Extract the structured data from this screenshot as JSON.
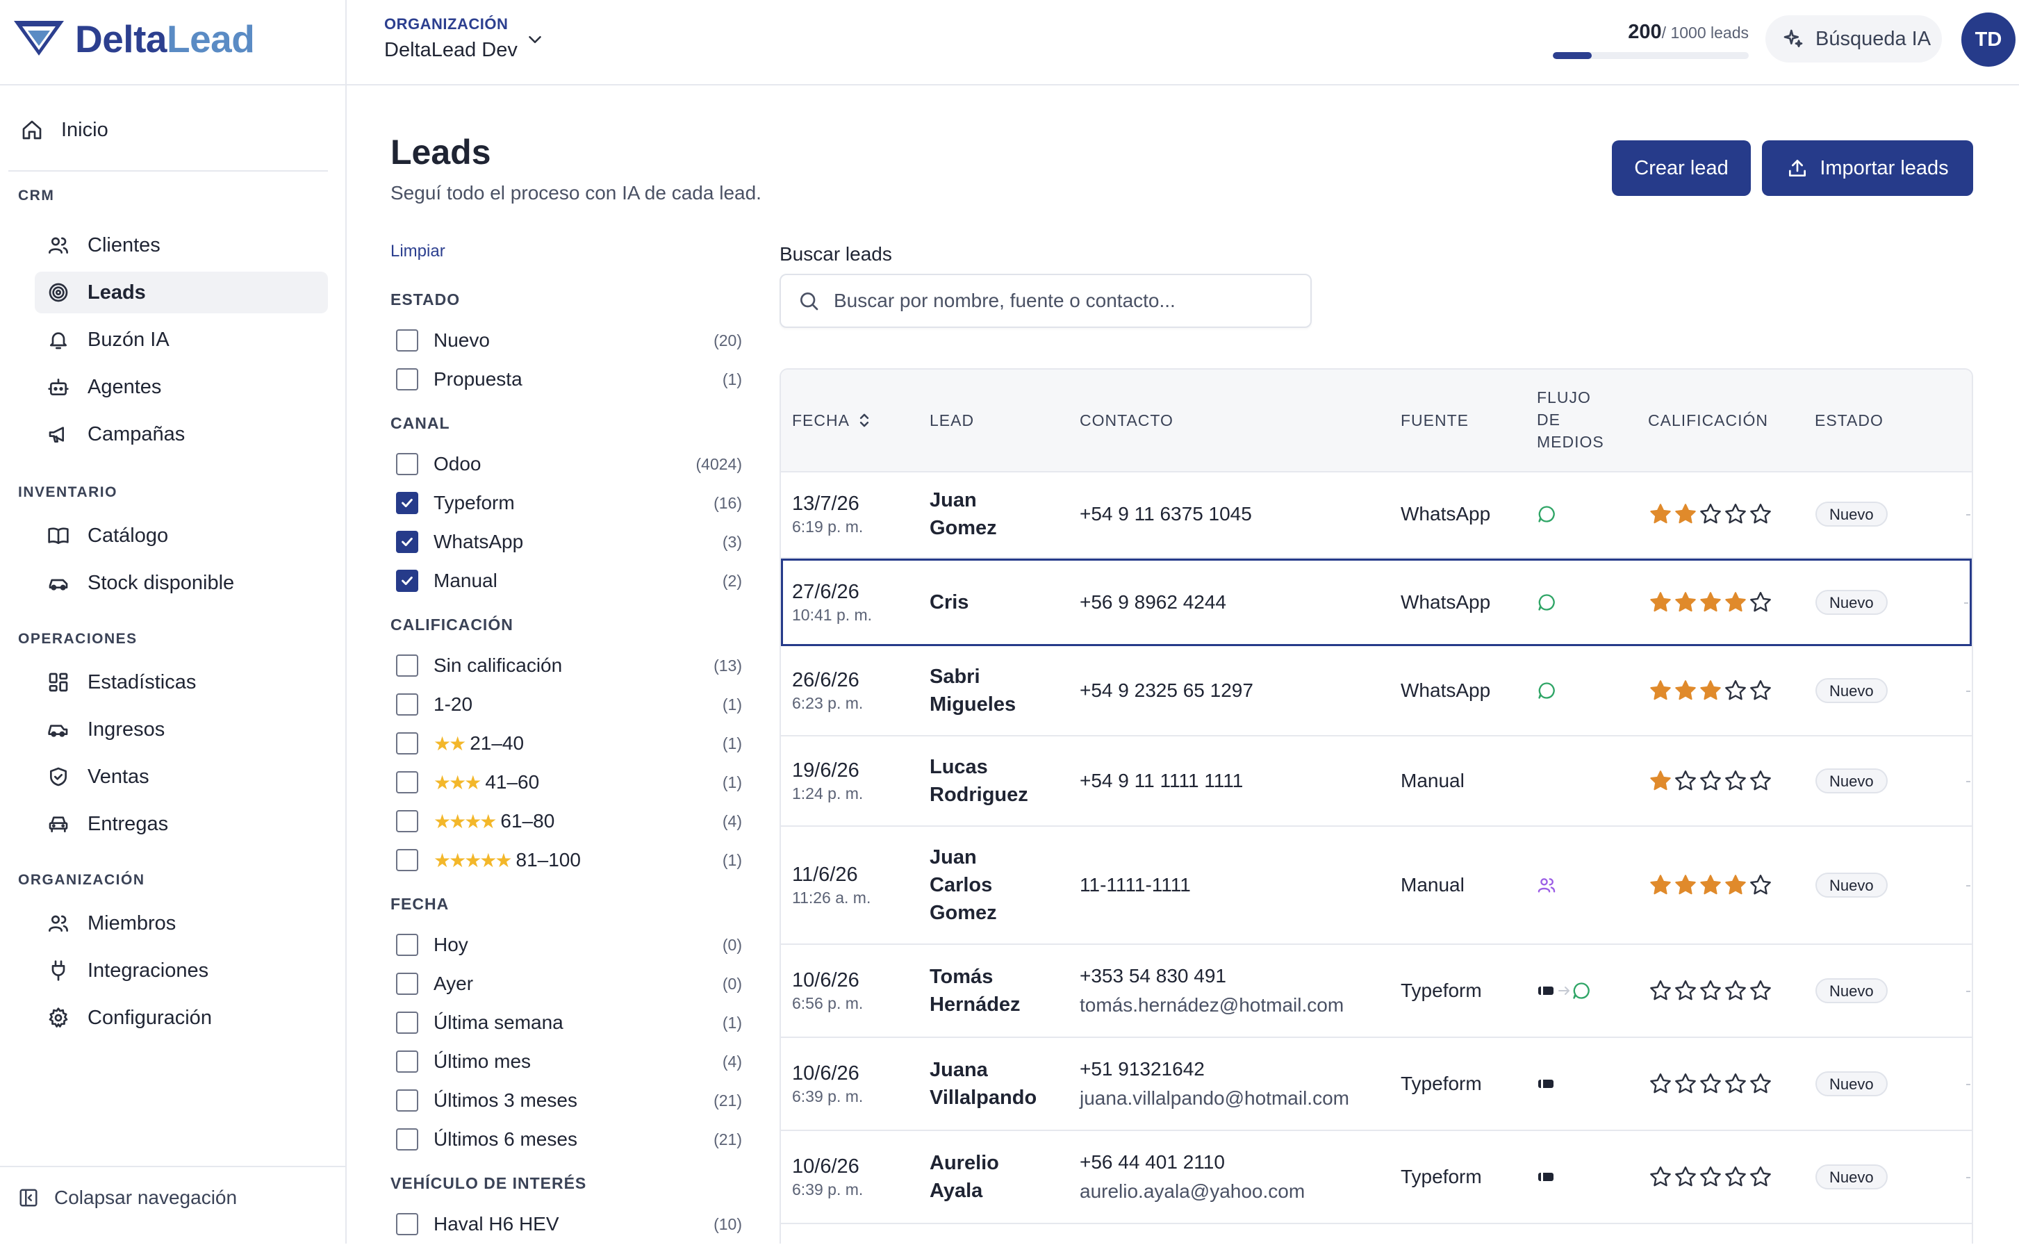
{
  "brand": {
    "name_part1": "Delta",
    "name_part2": "Lead"
  },
  "sidebar": {
    "home": {
      "label": "Inicio",
      "icon": "home-icon"
    },
    "sections": [
      {
        "title": "CRM",
        "items": [
          {
            "label": "Clientes",
            "icon": "users-icon"
          },
          {
            "label": "Leads",
            "icon": "target-icon",
            "active": true
          },
          {
            "label": "Buzón IA",
            "icon": "bell-icon"
          },
          {
            "label": "Agentes",
            "icon": "bot-icon"
          },
          {
            "label": "Campañas",
            "icon": "megaphone-icon"
          }
        ]
      },
      {
        "title": "INVENTARIO",
        "items": [
          {
            "label": "Catálogo",
            "icon": "book-icon"
          },
          {
            "label": "Stock disponible",
            "icon": "car-icon"
          }
        ]
      },
      {
        "title": "OPERACIONES",
        "items": [
          {
            "label": "Estadísticas",
            "icon": "dashboard-icon"
          },
          {
            "label": "Ingresos",
            "icon": "car-in-icon"
          },
          {
            "label": "Ventas",
            "icon": "shield-icon"
          },
          {
            "label": "Entregas",
            "icon": "car-front-icon"
          }
        ]
      },
      {
        "title": "ORGANIZACIÓN",
        "items": [
          {
            "label": "Miembros",
            "icon": "users-icon"
          },
          {
            "label": "Integraciones",
            "icon": "plug-icon"
          },
          {
            "label": "Configuración",
            "icon": "gear-icon"
          }
        ]
      }
    ],
    "collapse_label": "Colapsar navegación"
  },
  "topbar": {
    "org_label": "ORGANIZACIÓN",
    "org_name": "DeltaLead Dev",
    "usage_used": "200",
    "usage_total": "/ 1000 leads",
    "usage_fraction": 0.2,
    "ai_search_label": "Búsqueda IA",
    "avatar_initials": "TD"
  },
  "page": {
    "title": "Leads",
    "subtitle": "Seguí todo el proceso con IA de cada lead.",
    "create_button": "Crear lead",
    "import_button": "Importar leads"
  },
  "filters": {
    "clear_label": "Limpiar",
    "groups": [
      {
        "title": "ESTADO",
        "options": [
          {
            "label": "Nuevo",
            "count": "(20)",
            "checked": false
          },
          {
            "label": "Propuesta",
            "count": "(1)",
            "checked": false
          }
        ]
      },
      {
        "title": "CANAL",
        "options": [
          {
            "label": "Odoo",
            "count": "(4024)",
            "checked": false
          },
          {
            "label": "Typeform",
            "count": "(16)",
            "checked": true
          },
          {
            "label": "WhatsApp",
            "count": "(3)",
            "checked": true
          },
          {
            "label": "Manual",
            "count": "(2)",
            "checked": true
          }
        ]
      },
      {
        "title": "CALIFICACIÓN",
        "options": [
          {
            "label": "Sin calificación",
            "count": "(13)",
            "checked": false,
            "stars": 0
          },
          {
            "label": "1-20",
            "count": "(1)",
            "checked": false,
            "stars": 0
          },
          {
            "label": "21–40",
            "count": "(1)",
            "checked": false,
            "stars": 2
          },
          {
            "label": "41–60",
            "count": "(1)",
            "checked": false,
            "stars": 3
          },
          {
            "label": "61–80",
            "count": "(4)",
            "checked": false,
            "stars": 4
          },
          {
            "label": "81–100",
            "count": "(1)",
            "checked": false,
            "stars": 5
          }
        ]
      },
      {
        "title": "FECHA",
        "options": [
          {
            "label": "Hoy",
            "count": "(0)",
            "checked": false
          },
          {
            "label": "Ayer",
            "count": "(0)",
            "checked": false
          },
          {
            "label": "Última semana",
            "count": "(1)",
            "checked": false
          },
          {
            "label": "Último mes",
            "count": "(4)",
            "checked": false
          },
          {
            "label": "Últimos 3 meses",
            "count": "(21)",
            "checked": false
          },
          {
            "label": "Últimos 6 meses",
            "count": "(21)",
            "checked": false
          }
        ]
      },
      {
        "title": "VEHÍCULO DE INTERÉS",
        "options": [
          {
            "label": "Haval H6 HEV",
            "count": "(10)",
            "checked": false
          }
        ]
      }
    ]
  },
  "search": {
    "label": "Buscar leads",
    "placeholder": "Buscar por nombre, fuente o contacto..."
  },
  "table": {
    "headers": {
      "date": "FECHA",
      "lead": "LEAD",
      "contact": "CONTACTO",
      "source": "FUENTE",
      "flow_1": "FLUJO",
      "flow_2": "DE",
      "flow_3": "MEDIOS",
      "rating": "CALIFICACIÓN",
      "status": "ESTADO"
    },
    "rows": [
      {
        "date": "13/7/26",
        "time": "6:19 p. m.",
        "lead_lines": [
          "Juan",
          "Gomez"
        ],
        "contact_lines": [
          "+54 9 11 6375 1045"
        ],
        "source": "WhatsApp",
        "flow": [
          "chat-icon"
        ],
        "rating": 2,
        "status": "Nuevo"
      },
      {
        "date": "27/6/26",
        "time": "10:41 p. m.",
        "lead_lines": [
          "Cris"
        ],
        "contact_lines": [
          "+56 9 8962 4244"
        ],
        "source": "WhatsApp",
        "flow": [
          "chat-icon"
        ],
        "rating": 4,
        "status": "Nuevo",
        "selected": true
      },
      {
        "date": "26/6/26",
        "time": "6:23 p. m.",
        "lead_lines": [
          "Sabri",
          "Migueles"
        ],
        "contact_lines": [
          "+54 9 2325 65 1297"
        ],
        "source": "WhatsApp",
        "flow": [
          "chat-icon"
        ],
        "rating": 3,
        "status": "Nuevo"
      },
      {
        "date": "19/6/26",
        "time": "1:24 p. m.",
        "lead_lines": [
          "Lucas",
          "Rodriguez"
        ],
        "contact_lines": [
          "+54 9 11 1111 1111"
        ],
        "source": "Manual",
        "flow": [],
        "rating": 1,
        "status": "Nuevo"
      },
      {
        "date": "11/6/26",
        "time": "11:26 a. m.",
        "lead_lines": [
          "Juan",
          "Carlos",
          "Gomez"
        ],
        "contact_lines": [
          "11-1111-1111"
        ],
        "source": "Manual",
        "flow": [
          "people-icon"
        ],
        "rating": 4,
        "status": "Nuevo"
      },
      {
        "date": "10/6/26",
        "time": "6:56 p. m.",
        "lead_lines": [
          "Tomás",
          "Hernádez"
        ],
        "contact_lines": [
          "+353 54 830 491",
          "tomás.hernádez@hotmail.com"
        ],
        "source": "Typeform",
        "flow": [
          "form-icon",
          "arrow-icon",
          "chat-icon"
        ],
        "rating": 0,
        "status": "Nuevo"
      },
      {
        "date": "10/6/26",
        "time": "6:39 p. m.",
        "lead_lines": [
          "Juana",
          "Villalpando"
        ],
        "contact_lines": [
          "+51 91321642",
          "juana.villalpando@hotmail.com"
        ],
        "source": "Typeform",
        "flow": [
          "form-icon"
        ],
        "rating": 0,
        "status": "Nuevo"
      },
      {
        "date": "10/6/26",
        "time": "6:39 p. m.",
        "lead_lines": [
          "Aurelio",
          "Ayala"
        ],
        "contact_lines": [
          "+56 44 401 2110",
          "aurelio.ayala@yahoo.com"
        ],
        "source": "Typeform",
        "flow": [
          "form-icon"
        ],
        "rating": 0,
        "status": "Nuevo"
      }
    ]
  },
  "colors": {
    "primary": "#263b8a",
    "brand_delta": "#2c3f8f",
    "brand_lead": "#5a8bc4",
    "star_filled": "#e08a2b",
    "whatsapp_icon": "#2fa566",
    "people_icon": "#9b5de5"
  }
}
